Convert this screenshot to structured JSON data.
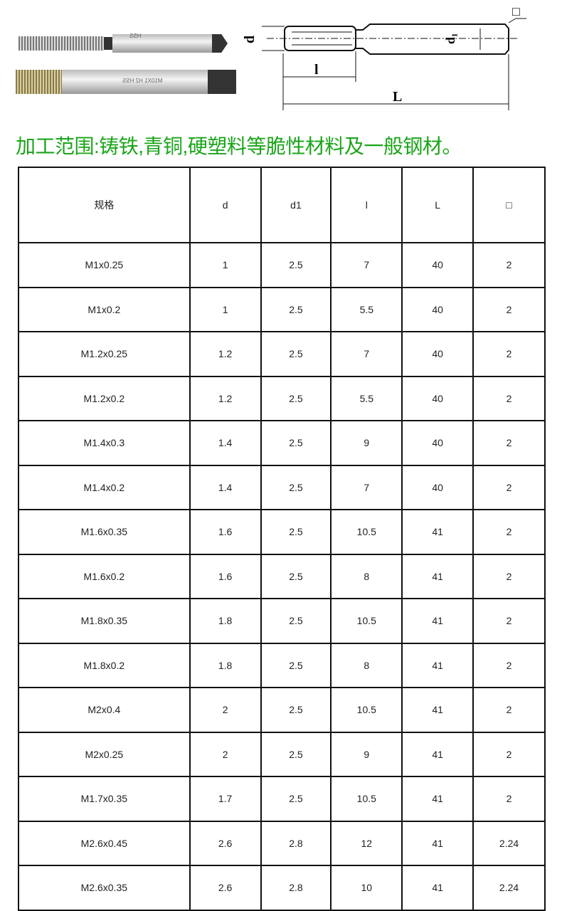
{
  "images": {
    "tap1_marking": "HSS",
    "tap2_marking": "M10X1 H2 HSS",
    "diagram_labels": {
      "d": "d",
      "d1": "d₁",
      "l": "l",
      "L": "L",
      "square": "□"
    }
  },
  "title": "加工范围:铸铁,青铜,硬塑料等脆性材料及一般钢材。",
  "table": {
    "headers": [
      "规格",
      "d",
      "d1",
      "l",
      "L",
      "□"
    ],
    "rows": [
      [
        "M1x0.25",
        "1",
        "2.5",
        "7",
        "40",
        "2"
      ],
      [
        "M1x0.2",
        "1",
        "2.5",
        "5.5",
        "40",
        "2"
      ],
      [
        "M1.2x0.25",
        "1.2",
        "2.5",
        "7",
        "40",
        "2"
      ],
      [
        "M1.2x0.2",
        "1.2",
        "2.5",
        "5.5",
        "40",
        "2"
      ],
      [
        "M1.4x0.3",
        "1.4",
        "2.5",
        "9",
        "40",
        "2"
      ],
      [
        "M1.4x0.2",
        "1.4",
        "2.5",
        "7",
        "40",
        "2"
      ],
      [
        "M1.6x0.35",
        "1.6",
        "2.5",
        "10.5",
        "41",
        "2"
      ],
      [
        "M1.6x0.2",
        "1.6",
        "2.5",
        "8",
        "41",
        "2"
      ],
      [
        "M1.8x0.35",
        "1.8",
        "2.5",
        "10.5",
        "41",
        "2"
      ],
      [
        "M1.8x0.2",
        "1.8",
        "2.5",
        "8",
        "41",
        "2"
      ],
      [
        "M2x0.4",
        "2",
        "2.5",
        "10.5",
        "41",
        "2"
      ],
      [
        "M2x0.25",
        "2",
        "2.5",
        "9",
        "41",
        "2"
      ],
      [
        "M1.7x0.35",
        "1.7",
        "2.5",
        "10.5",
        "41",
        "2"
      ],
      [
        "M2.6x0.45",
        "2.6",
        "2.8",
        "12",
        "41",
        "2.24"
      ],
      [
        "M2.6x0.35",
        "2.6",
        "2.8",
        "10",
        "41",
        "2.24"
      ]
    ]
  }
}
